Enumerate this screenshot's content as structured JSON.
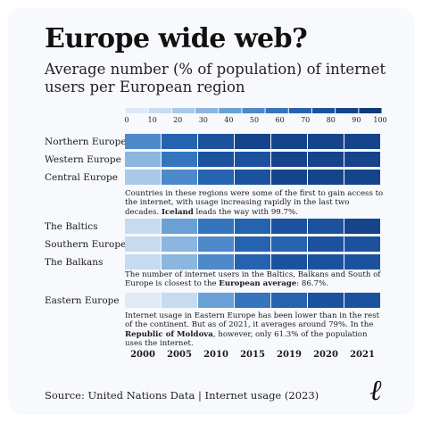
{
  "title": "Europe wide web?",
  "subtitle": "Average number (% of population) of internet users per European region",
  "chart_data": {
    "type": "heatmap",
    "title": "Europe wide web?",
    "subtitle": "Average number (% of population) of internet users per European region",
    "x": [
      "2000",
      "2005",
      "2010",
      "2015",
      "2019",
      "2020",
      "2021"
    ],
    "scale": {
      "ticks": [
        0,
        10,
        20,
        30,
        40,
        50,
        60,
        70,
        80,
        90,
        100
      ],
      "range": [
        0,
        100
      ],
      "colors": [
        "#dfeaf6",
        "#c7dbf0",
        "#aac9e7",
        "#8ab6df",
        "#6ba0d5",
        "#4e89c9",
        "#3575bd",
        "#2663ae",
        "#1c529d",
        "#16448a",
        "#103a78"
      ]
    },
    "series": [
      {
        "name": "Northern Europe",
        "values": [
          48,
          65,
          80,
          87,
          91,
          92,
          93
        ]
      },
      {
        "name": "Western Europe",
        "values": [
          25,
          55,
          77,
          84,
          88,
          90,
          91
        ]
      },
      {
        "name": "Central Europe",
        "values": [
          24,
          52,
          74,
          82,
          87,
          89,
          90
        ]
      },
      {
        "name": "The Baltics",
        "values": [
          8,
          35,
          60,
          72,
          80,
          83,
          85
        ]
      },
      {
        "name": "Southern Europe",
        "values": [
          12,
          30,
          50,
          66,
          74,
          78,
          82
        ]
      },
      {
        "name": "The Balkans",
        "values": [
          5,
          28,
          52,
          68,
          76,
          80,
          82
        ]
      },
      {
        "name": "Eastern Europe",
        "values": [
          2,
          12,
          38,
          62,
          72,
          76,
          79
        ]
      }
    ]
  },
  "notes": {
    "group1": {
      "before": "Countries in these regions were some of the first to gain access to the internet, with usage increasing rapidly in the last two decades. ",
      "bold": "Iceland",
      "after": " leads the way with 99.7%."
    },
    "group2": {
      "before": "The number of internet users in the Baltics, Balkans and South of Europe is closest to the ",
      "bold": "European average",
      "after": ": 86.7%."
    },
    "group3": {
      "before": "Internet usage in Eastern Europe has been lower than in the rest of the continent. But as of 2021, it averages around 79%. In the ",
      "bold": "Republic of Moldova",
      "after": ", however, only 61.3% of the population uses the internet."
    }
  },
  "source": "Source: United Nations Data | Internet usage (2023)",
  "logo": "ℓ"
}
